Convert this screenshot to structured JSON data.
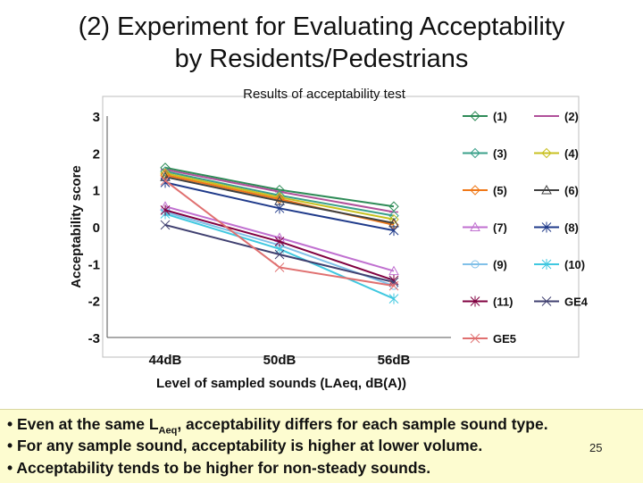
{
  "slide": {
    "title_line1": "(2) Experiment for Evaluating Acceptability",
    "title_line2": "by Residents/Pedestrians",
    "notes": {
      "line1_pre": "• Even at the same L",
      "line1_sub": "Aeq",
      "line1_post": ", acceptability differs for each sample sound type.",
      "line2": "• For any sample sound, acceptability is higher at lower volume.",
      "line3": "• Acceptability tends to be higher for non-steady sounds."
    },
    "page_number": "25"
  },
  "chart_data": {
    "type": "line",
    "title": "Results of acceptability test",
    "xlabel": "Level of sampled sounds  (LAeq, dB(A))",
    "ylabel": "Acceptability score",
    "categories": [
      "44dB",
      "50dB",
      "56dB"
    ],
    "ylim": [
      -3,
      3
    ],
    "yticks": [
      "3",
      "2",
      "1",
      "0",
      "-1",
      "-2",
      "-3"
    ],
    "grid": false,
    "legend_position": "right",
    "series": [
      {
        "name": "(1)",
        "values": [
          1.6,
          1.0,
          0.55
        ],
        "color": "#2e8b57",
        "marker": "diamond"
      },
      {
        "name": "(2)",
        "values": [
          1.55,
          0.95,
          0.4
        ],
        "color": "#b0509a",
        "marker": "dash"
      },
      {
        "name": "(3)",
        "values": [
          1.5,
          0.85,
          0.3
        ],
        "color": "#3aa08a",
        "marker": "diamond"
      },
      {
        "name": "(4)",
        "values": [
          1.45,
          0.8,
          0.2
        ],
        "color": "#c8c020",
        "marker": "diamond"
      },
      {
        "name": "(5)",
        "values": [
          1.4,
          0.75,
          0.05
        ],
        "color": "#f07818",
        "marker": "diamond"
      },
      {
        "name": "(6)",
        "values": [
          1.35,
          0.7,
          0.1
        ],
        "color": "#404040",
        "marker": "triangle"
      },
      {
        "name": "(7)",
        "values": [
          0.55,
          -0.3,
          -1.2
        ],
        "color": "#c070d0",
        "marker": "triangle"
      },
      {
        "name": "(8)",
        "values": [
          1.2,
          0.5,
          -0.1
        ],
        "color": "#1f3a8a",
        "marker": "star"
      },
      {
        "name": "(9)",
        "values": [
          0.4,
          -0.5,
          -1.6
        ],
        "color": "#80c0e8",
        "marker": "circle"
      },
      {
        "name": "(10)",
        "values": [
          0.35,
          -0.6,
          -1.95
        ],
        "color": "#40c8e0",
        "marker": "star"
      },
      {
        "name": "(11)",
        "values": [
          0.45,
          -0.4,
          -1.45
        ],
        "color": "#800040",
        "marker": "star"
      },
      {
        "name": "GE4",
        "values": [
          0.05,
          -0.75,
          -1.5
        ],
        "color": "#404070",
        "marker": "x"
      },
      {
        "name": "GE5",
        "values": [
          1.25,
          -1.1,
          -1.6
        ],
        "color": "#e07070",
        "marker": "x"
      }
    ]
  }
}
